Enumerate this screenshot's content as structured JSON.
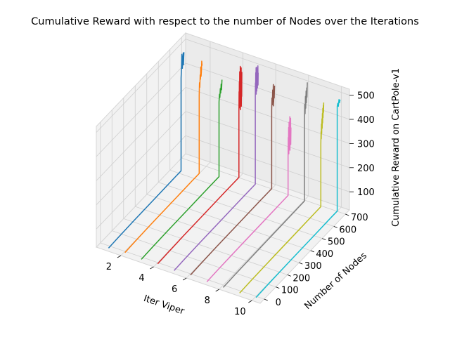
{
  "chart_data": {
    "type": "line",
    "projection": "3d",
    "title": "Cumulative Reward with respect to the number of Nodes over the Iterations",
    "xlabel": "Iter Viper",
    "ylabel": "Number of Nodes",
    "zlabel": "Cumulative Reward on CartPole-v1",
    "xlim": [
      0.5,
      10.5
    ],
    "ylim": [
      -35,
      735
    ],
    "zlim": [
      25,
      525
    ],
    "x_ticks": [
      "2",
      "4",
      "6",
      "8",
      "10"
    ],
    "y_ticks": [
      "0",
      "100",
      "200",
      "300",
      "400",
      "500",
      "600",
      "700"
    ],
    "z_ticks": [
      "100",
      "200",
      "300",
      "400",
      "500"
    ],
    "grid": true,
    "series": [
      {
        "color": "#1f77b4",
        "x": 1,
        "y": [
          0,
          80,
          220,
          400,
          580,
          625
        ],
        "z": [
          15,
          17,
          19,
          20,
          21,
          21
        ],
        "end_z": [
          405,
          430,
          460,
          500,
          470,
          440,
          490,
          470,
          500,
          450,
          480,
          500
        ]
      },
      {
        "color": "#ff7f0e",
        "x": 2,
        "y": [
          0,
          80,
          220,
          400,
          580,
          640
        ],
        "z": [
          20,
          22,
          24,
          25,
          26,
          26
        ],
        "end_z": [
          350,
          400,
          380,
          430,
          410,
          460,
          420,
          440,
          480,
          460
        ]
      },
      {
        "color": "#2ca02c",
        "x": 3,
        "y": [
          0,
          80,
          220,
          400,
          580,
          670
        ],
        "z": [
          15,
          17,
          19,
          20,
          21,
          21
        ],
        "end_z": [
          330,
          360,
          345,
          380,
          360,
          395,
          370,
          410
        ]
      },
      {
        "color": "#d62728",
        "x": 4,
        "y": [
          0,
          80,
          220,
          400,
          580,
          700
        ],
        "z": [
          20,
          22,
          24,
          25,
          26,
          26
        ],
        "end_z": [
          300,
          380,
          320,
          420,
          340,
          460,
          310,
          400,
          350,
          480,
          300,
          420,
          360,
          440,
          330,
          470,
          310,
          400,
          350,
          450
        ]
      },
      {
        "color": "#9467bd",
        "x": 5,
        "y": [
          0,
          80,
          220,
          400,
          580,
          700
        ],
        "z": [
          15,
          17,
          19,
          20,
          21,
          21
        ],
        "end_z": [
          380,
          440,
          400,
          480,
          420,
          500,
          390,
          470,
          430,
          500,
          400,
          460,
          440,
          490,
          410,
          480,
          450,
          500,
          420,
          470
        ]
      },
      {
        "color": "#8c564b",
        "x": 6,
        "y": [
          0,
          80,
          220,
          400,
          580,
          700
        ],
        "z": [
          20,
          22,
          24,
          25,
          26,
          26
        ],
        "end_z": [
          350,
          400,
          370,
          430,
          380,
          450,
          360,
          420,
          390,
          440
        ]
      },
      {
        "color": "#e377c2",
        "x": 7,
        "y": [
          0,
          100,
          300,
          500,
          650,
          700
        ],
        "z": [
          15,
          17,
          19,
          20,
          21,
          21
        ],
        "end_z": [
          180,
          260,
          200,
          300,
          190,
          320,
          210,
          280,
          230,
          340,
          200,
          300,
          250,
          330,
          220,
          290
        ]
      },
      {
        "color": "#7f7f7f",
        "x": 8,
        "y": [
          0,
          100,
          300,
          500,
          650,
          700
        ],
        "z": [
          15,
          17,
          19,
          20,
          21,
          21
        ],
        "end_z": [
          350,
          420,
          380,
          450,
          400,
          470,
          420,
          480,
          440,
          500
        ]
      },
      {
        "color": "#bcbd22",
        "x": 9,
        "y": [
          0,
          100,
          300,
          500,
          650,
          700
        ],
        "z": [
          15,
          17,
          19,
          20,
          21,
          21
        ],
        "end_z": [
          280,
          330,
          300,
          360,
          320,
          380,
          340,
          400,
          360,
          420,
          380,
          430,
          400,
          440
        ]
      },
      {
        "color": "#17becf",
        "x": 10,
        "y": [
          0,
          100,
          300,
          500,
          650,
          700
        ],
        "z": [
          20,
          22,
          24,
          25,
          26,
          26
        ],
        "end_z": [
          460,
          470,
          455,
          480,
          465,
          475
        ]
      }
    ]
  }
}
